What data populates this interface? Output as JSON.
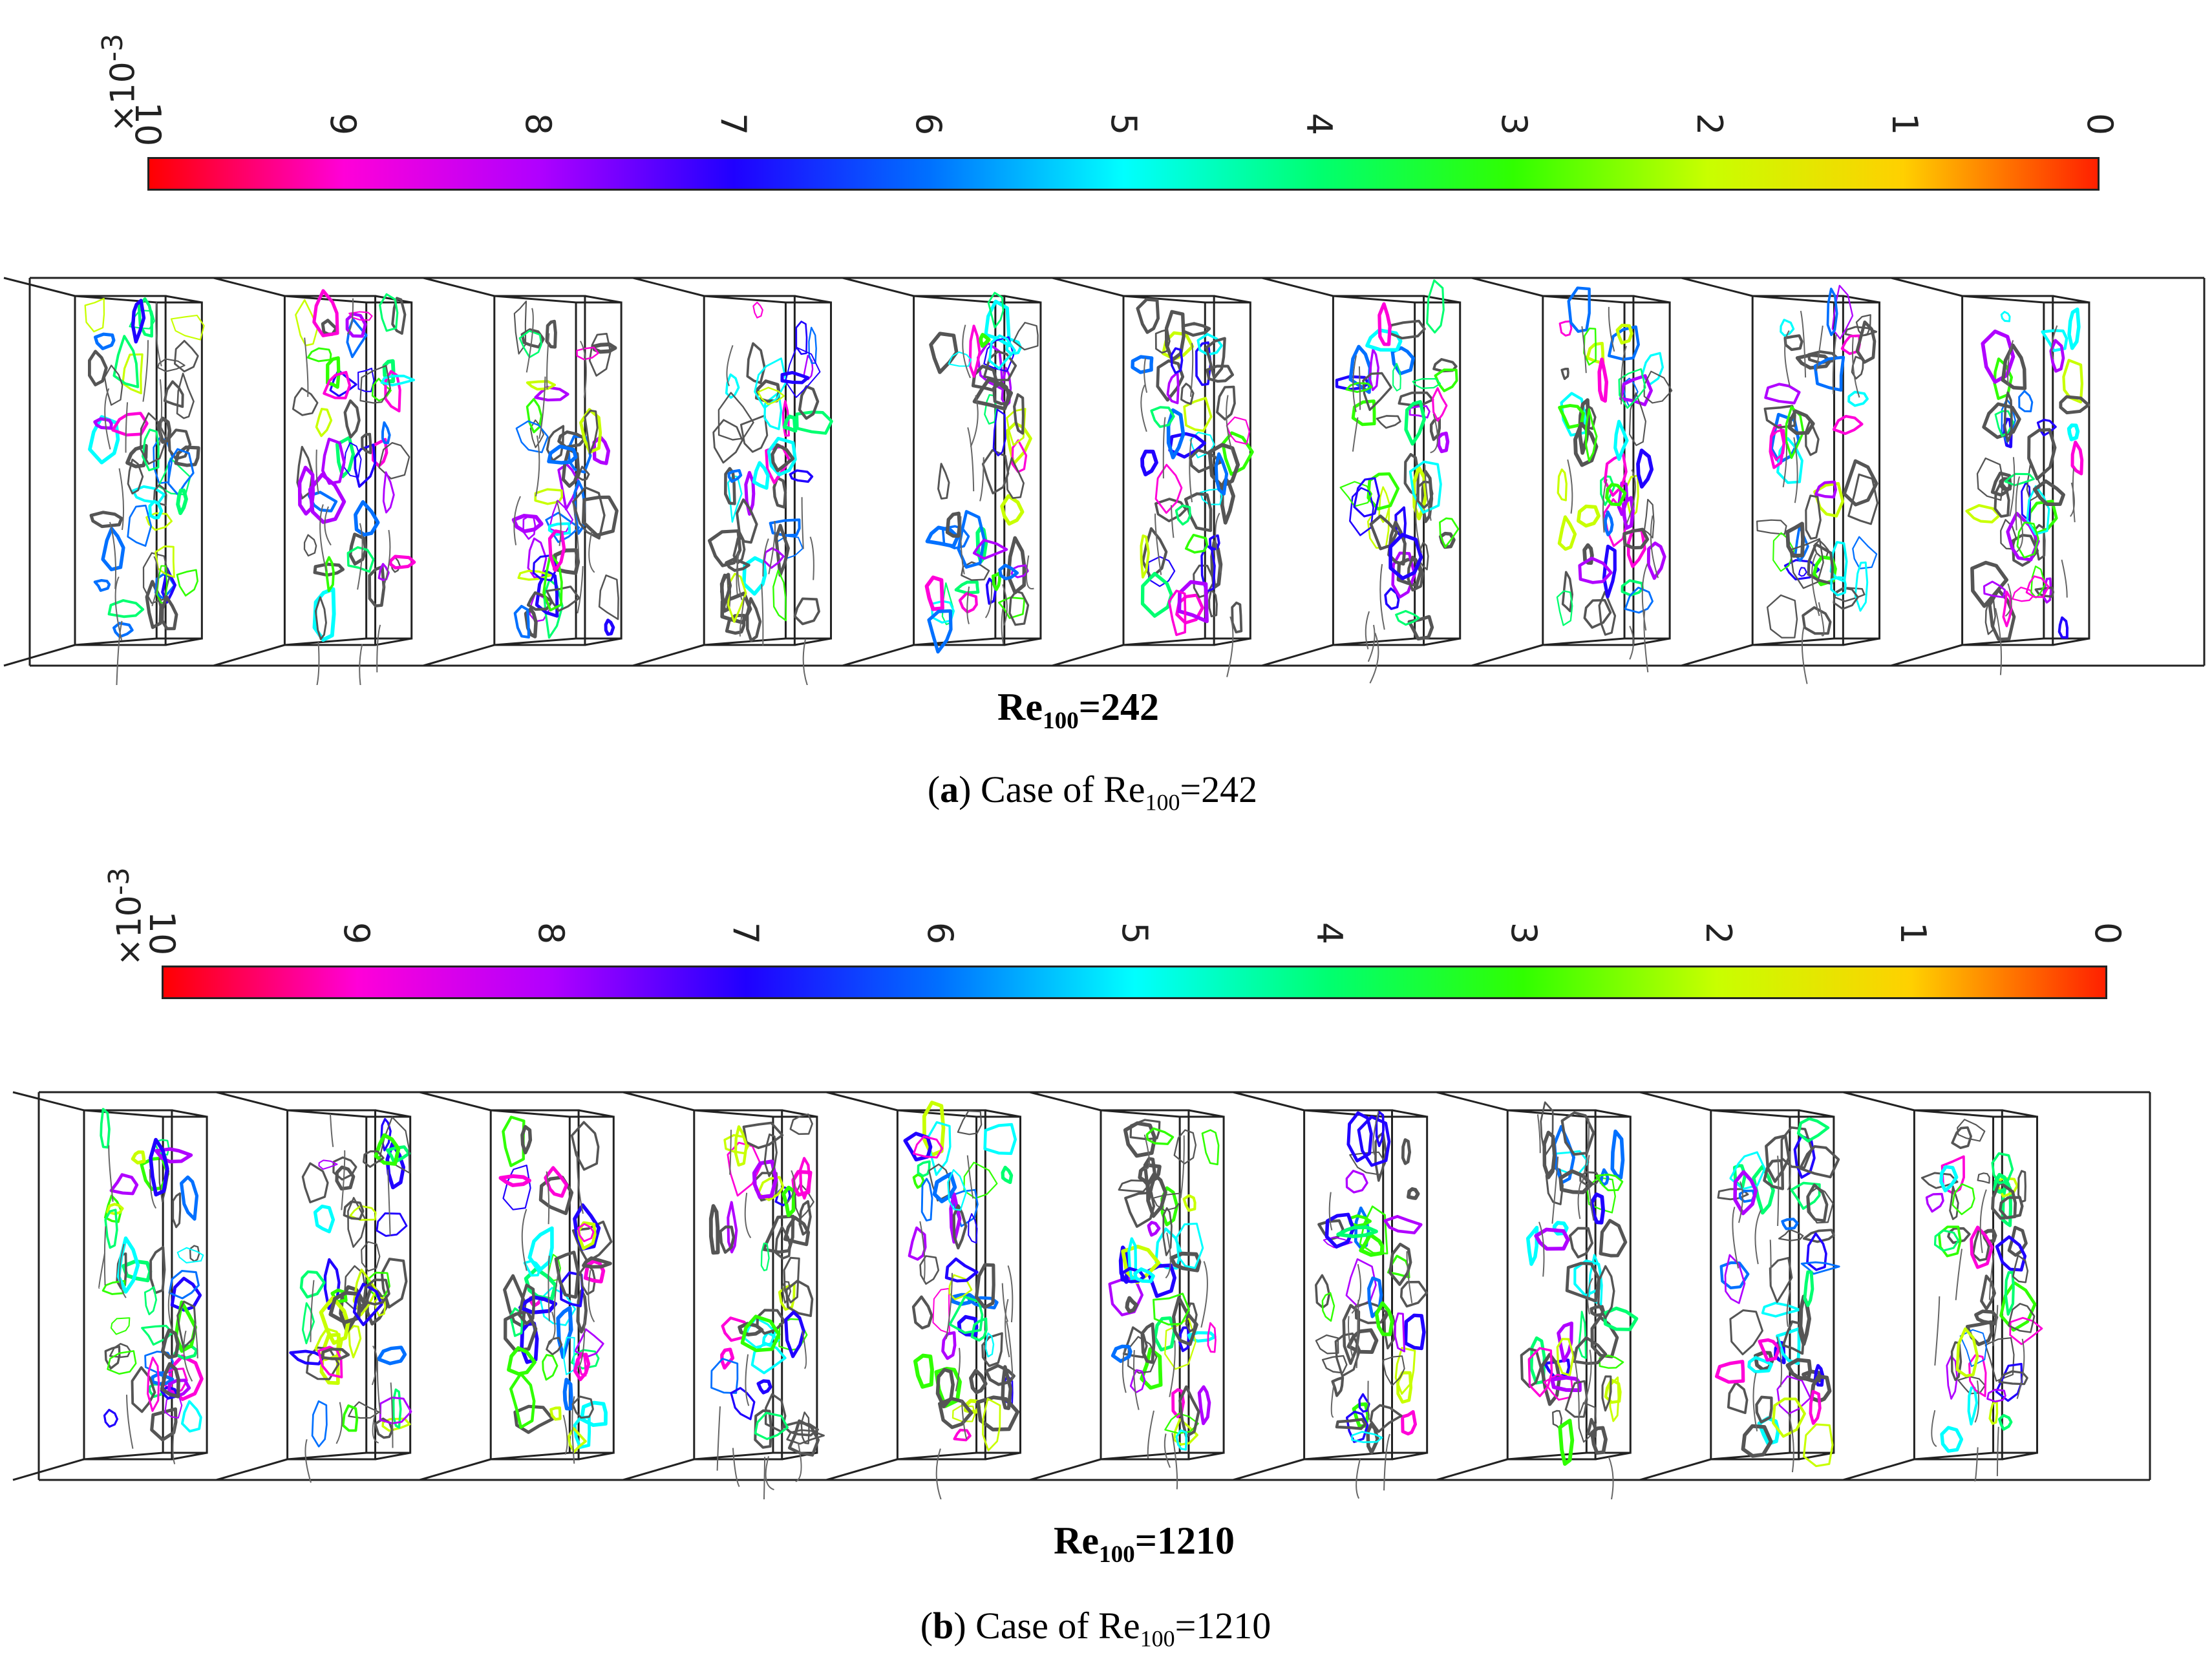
{
  "figure": {
    "panels": [
      {
        "id": "a",
        "colorbar": {
          "multiplier": "×10",
          "exponent": "-3",
          "ticks": [
            "10",
            "9",
            "8",
            "7",
            "6",
            "5",
            "4",
            "3",
            "2",
            "1",
            "0"
          ],
          "colors": [
            "#ff0000",
            "#ff00d8",
            "#b000ff",
            "#2000ff",
            "#0070ff",
            "#00ffff",
            "#00ff70",
            "#30ff00",
            "#c8ff00",
            "#ffd000",
            "#ff2000"
          ]
        },
        "domain_count": 10,
        "re_label": {
          "base": "Re",
          "sub": "100",
          "rest": "=242"
        },
        "caption": {
          "open": "(",
          "letter": "a",
          "text": ") Case of Re",
          "sub": "100",
          "rest": "=242"
        }
      },
      {
        "id": "b",
        "colorbar": {
          "multiplier": "×10",
          "exponent": "-3",
          "ticks": [
            "10",
            "9",
            "8",
            "7",
            "6",
            "5",
            "4",
            "3",
            "2",
            "1",
            "0"
          ],
          "colors": [
            "#ff0000",
            "#ff00d8",
            "#b000ff",
            "#2000ff",
            "#0070ff",
            "#00ffff",
            "#00ff70",
            "#30ff00",
            "#c8ff00",
            "#ffd000",
            "#ff2000"
          ]
        },
        "domain_count": 10,
        "re_label": {
          "base": "Re",
          "sub": "100",
          "rest": "=1210"
        },
        "caption": {
          "open": "(",
          "letter": "b",
          "text": ") Case of Re",
          "sub": "100",
          "rest": "=1210"
        }
      }
    ]
  }
}
